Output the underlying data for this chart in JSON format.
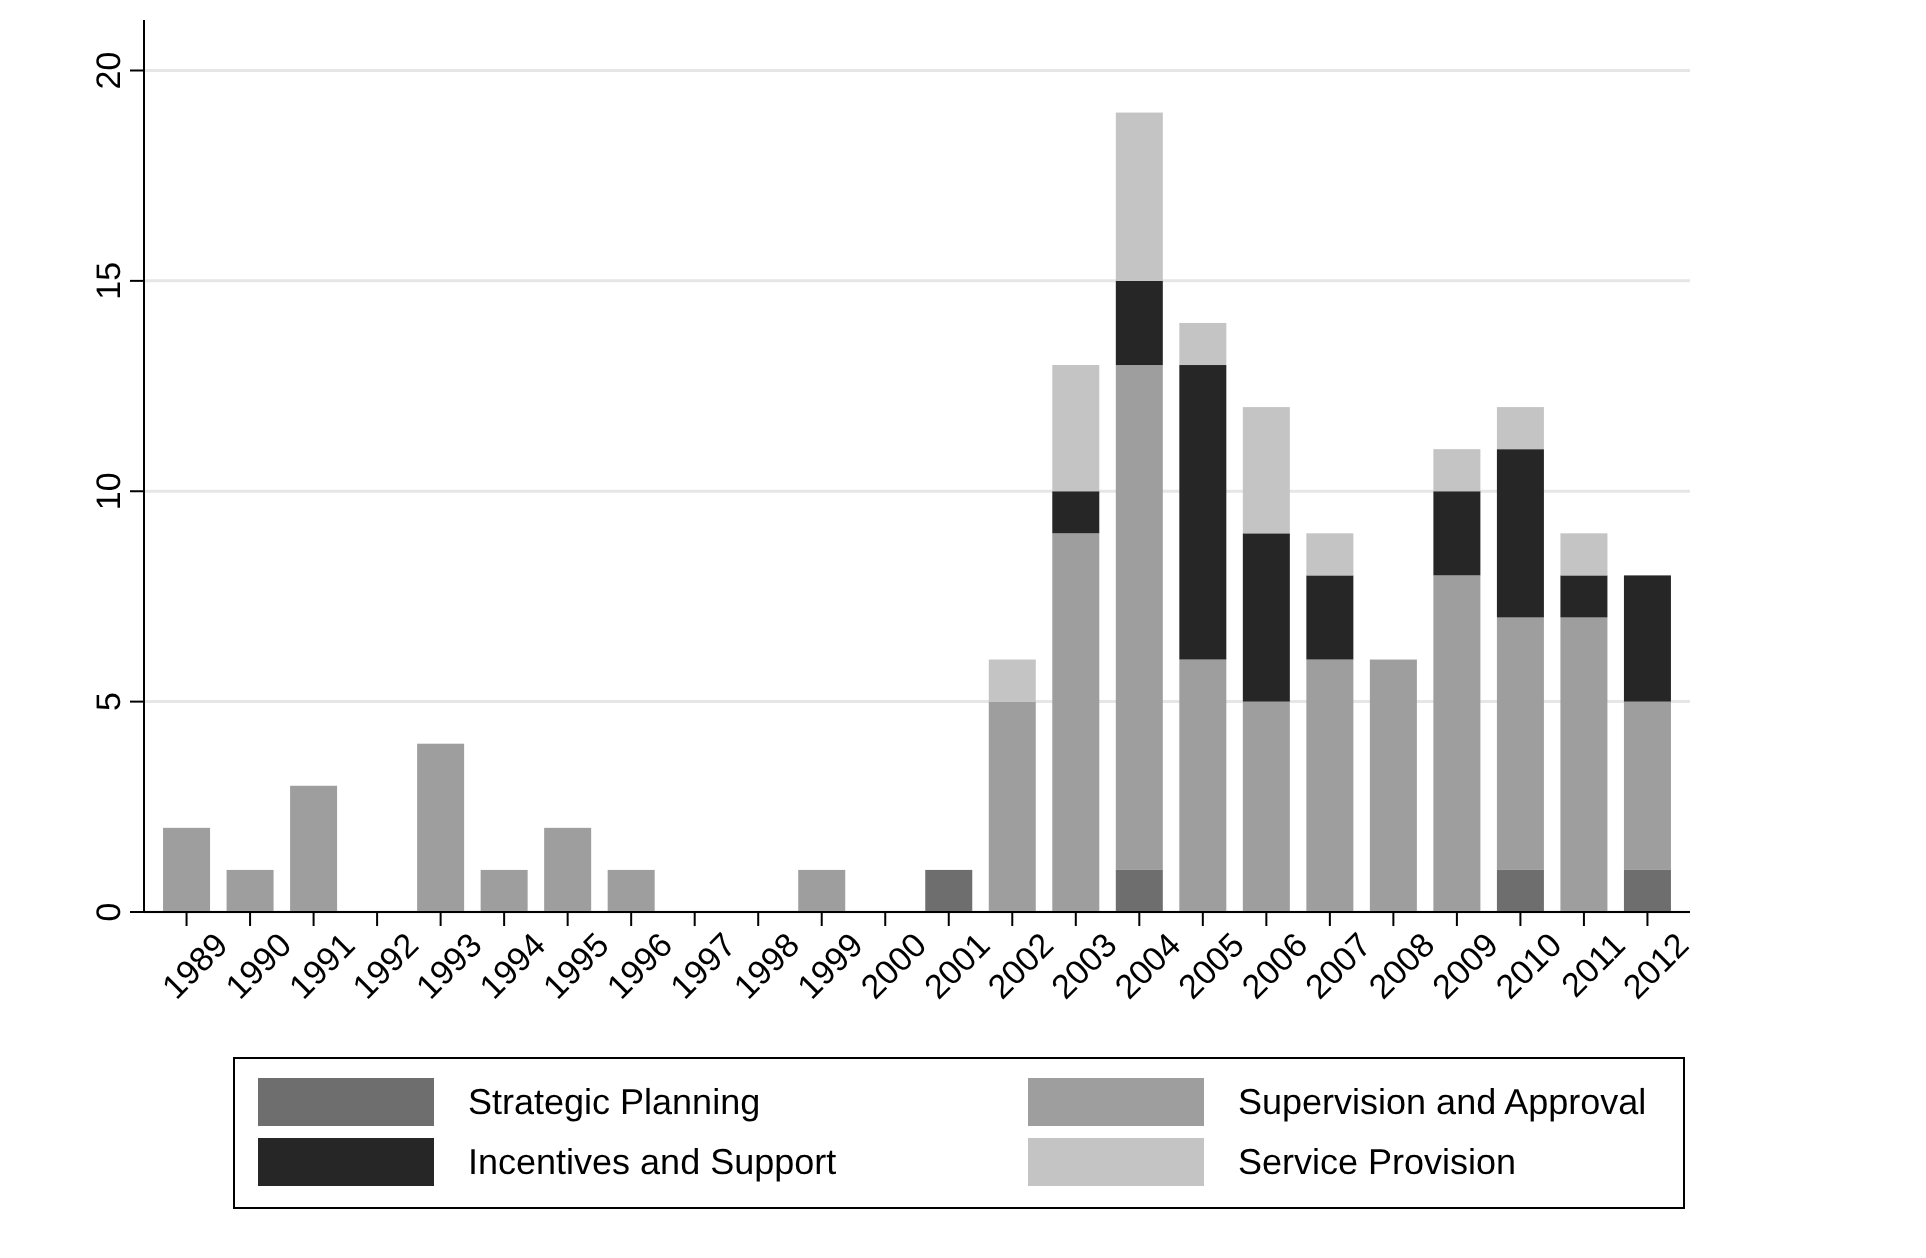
{
  "chart_data": {
    "type": "bar",
    "stacked": true,
    "categories": [
      "1989",
      "1990",
      "1991",
      "1992",
      "1993",
      "1994",
      "1995",
      "1996",
      "1997",
      "1998",
      "1999",
      "2000",
      "2001",
      "2002",
      "2003",
      "2004",
      "2005",
      "2006",
      "2007",
      "2008",
      "2009",
      "2010",
      "2011",
      "2012"
    ],
    "series": [
      {
        "name": "Strategic Planning",
        "color": "#6e6e6e",
        "values": [
          0,
          0,
          0,
          0,
          0,
          0,
          0,
          0,
          0,
          0,
          0,
          0,
          1,
          0,
          0,
          1,
          0,
          0,
          0,
          0,
          0,
          1,
          0,
          1
        ]
      },
      {
        "name": "Supervision and Approval",
        "color": "#9e9e9e",
        "values": [
          2,
          1,
          3,
          0,
          4,
          1,
          2,
          1,
          0,
          0,
          1,
          0,
          0,
          5,
          9,
          12,
          6,
          5,
          6,
          6,
          8,
          6,
          7,
          4
        ]
      },
      {
        "name": "Incentives and Support",
        "color": "#262626",
        "values": [
          0,
          0,
          0,
          0,
          0,
          0,
          0,
          0,
          0,
          0,
          0,
          0,
          0,
          0,
          1,
          2,
          7,
          4,
          2,
          0,
          2,
          4,
          1,
          3
        ]
      },
      {
        "name": "Service Provision",
        "color": "#c4c4c4",
        "values": [
          0,
          0,
          0,
          0,
          0,
          0,
          0,
          0,
          0,
          0,
          0,
          0,
          0,
          1,
          3,
          4,
          1,
          3,
          1,
          0,
          1,
          1,
          1,
          0
        ]
      }
    ],
    "ylim": [
      0,
      21.2
    ],
    "yticks": [
      0,
      5,
      10,
      15,
      20
    ],
    "grid": "y",
    "legend": "bottom"
  }
}
